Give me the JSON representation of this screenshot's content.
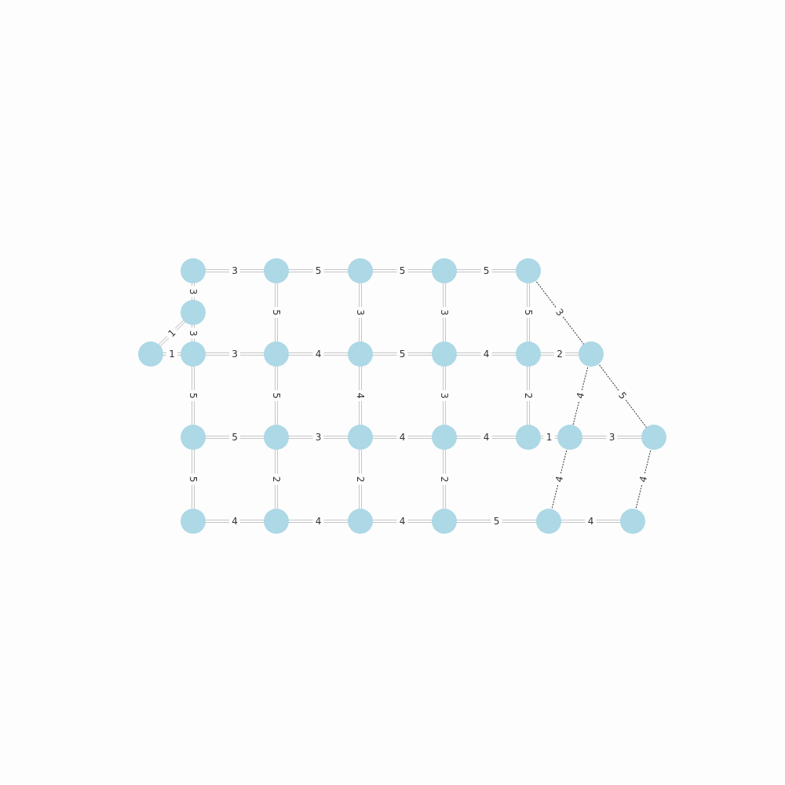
{
  "graph": {
    "node_color": "#add8e6",
    "edge_color_solid": "#c6c6c6",
    "edge_color_dashed": "#333333",
    "nodes": [
      {
        "id": "n1"
      },
      {
        "id": "n2"
      },
      {
        "id": "n3"
      },
      {
        "id": "n4"
      },
      {
        "id": "n5"
      },
      {
        "id": "n6"
      },
      {
        "id": "n7"
      },
      {
        "id": "n8"
      },
      {
        "id": "n9"
      },
      {
        "id": "n10"
      },
      {
        "id": "n11"
      },
      {
        "id": "n12"
      },
      {
        "id": "n13"
      },
      {
        "id": "n14"
      },
      {
        "id": "n15"
      },
      {
        "id": "n16"
      },
      {
        "id": "n17"
      },
      {
        "id": "n18"
      },
      {
        "id": "n19"
      },
      {
        "id": "n20"
      },
      {
        "id": "n21"
      },
      {
        "id": "n22"
      },
      {
        "id": "n23"
      },
      {
        "id": "n24"
      },
      {
        "id": "n25"
      },
      {
        "id": "n26"
      }
    ],
    "edges": [
      {
        "from": "n1",
        "to": "n2",
        "weight": "3",
        "style": "solid"
      },
      {
        "from": "n2",
        "to": "n3",
        "weight": "5",
        "style": "solid"
      },
      {
        "from": "n3",
        "to": "n4",
        "weight": "5",
        "style": "solid"
      },
      {
        "from": "n4",
        "to": "n5",
        "weight": "5",
        "style": "solid"
      },
      {
        "from": "n1",
        "to": "n6",
        "weight": "3",
        "style": "solid"
      },
      {
        "from": "n6",
        "to": "n7",
        "weight": "1",
        "style": "solid"
      },
      {
        "from": "n6",
        "to": "n8",
        "weight": "3",
        "style": "solid"
      },
      {
        "from": "n7",
        "to": "n8",
        "weight": "1",
        "style": "solid"
      },
      {
        "from": "n2",
        "to": "n9",
        "weight": "5",
        "style": "solid"
      },
      {
        "from": "n3",
        "to": "n10",
        "weight": "3",
        "style": "solid"
      },
      {
        "from": "n4",
        "to": "n11",
        "weight": "3",
        "style": "solid"
      },
      {
        "from": "n5",
        "to": "n12",
        "weight": "5",
        "style": "solid"
      },
      {
        "from": "n5",
        "to": "n13",
        "weight": "3",
        "style": "dashed"
      },
      {
        "from": "n8",
        "to": "n9",
        "weight": "3",
        "style": "solid"
      },
      {
        "from": "n9",
        "to": "n10",
        "weight": "4",
        "style": "solid"
      },
      {
        "from": "n10",
        "to": "n11",
        "weight": "5",
        "style": "solid"
      },
      {
        "from": "n11",
        "to": "n12",
        "weight": "4",
        "style": "solid"
      },
      {
        "from": "n12",
        "to": "n13",
        "weight": "2",
        "style": "solid"
      },
      {
        "from": "n8",
        "to": "n14",
        "weight": "5",
        "style": "solid"
      },
      {
        "from": "n9",
        "to": "n15",
        "weight": "5",
        "style": "solid"
      },
      {
        "from": "n10",
        "to": "n16",
        "weight": "4",
        "style": "solid"
      },
      {
        "from": "n11",
        "to": "n17",
        "weight": "3",
        "style": "solid"
      },
      {
        "from": "n12",
        "to": "n18",
        "weight": "2",
        "style": "solid"
      },
      {
        "from": "n13",
        "to": "n19",
        "weight": "4",
        "style": "dashed"
      },
      {
        "from": "n13",
        "to": "n20",
        "weight": "5",
        "style": "dashed"
      },
      {
        "from": "n14",
        "to": "n15",
        "weight": "5",
        "style": "solid"
      },
      {
        "from": "n15",
        "to": "n16",
        "weight": "3",
        "style": "solid"
      },
      {
        "from": "n16",
        "to": "n17",
        "weight": "4",
        "style": "solid"
      },
      {
        "from": "n17",
        "to": "n18",
        "weight": "4",
        "style": "solid"
      },
      {
        "from": "n18",
        "to": "n19",
        "weight": "1",
        "style": "solid"
      },
      {
        "from": "n19",
        "to": "n20",
        "weight": "3",
        "style": "solid"
      },
      {
        "from": "n14",
        "to": "n21",
        "weight": "5",
        "style": "solid"
      },
      {
        "from": "n15",
        "to": "n22",
        "weight": "2",
        "style": "solid"
      },
      {
        "from": "n16",
        "to": "n23",
        "weight": "2",
        "style": "solid"
      },
      {
        "from": "n17",
        "to": "n24",
        "weight": "2",
        "style": "solid"
      },
      {
        "from": "n19",
        "to": "n25",
        "weight": "4",
        "style": "dashed"
      },
      {
        "from": "n20",
        "to": "n26",
        "weight": "4",
        "style": "dashed"
      },
      {
        "from": "n21",
        "to": "n22",
        "weight": "4",
        "style": "solid"
      },
      {
        "from": "n22",
        "to": "n23",
        "weight": "4",
        "style": "solid"
      },
      {
        "from": "n23",
        "to": "n24",
        "weight": "4",
        "style": "solid"
      },
      {
        "from": "n24",
        "to": "n25",
        "weight": "5",
        "style": "solid"
      },
      {
        "from": "n25",
        "to": "n26",
        "weight": "4",
        "style": "solid"
      }
    ]
  }
}
